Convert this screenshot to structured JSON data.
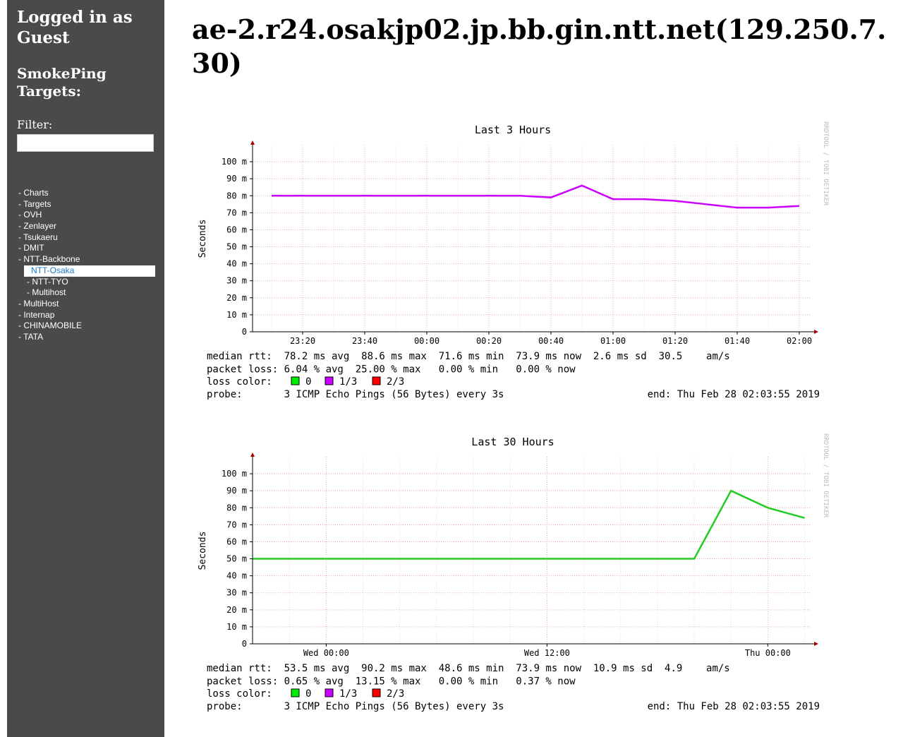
{
  "sidebar": {
    "login": "Logged in as Guest",
    "targets_heading": "SmokePing Targets:",
    "filter_label": "Filter:",
    "menu": [
      {
        "label": "- Charts"
      },
      {
        "label": "- Targets"
      },
      {
        "label": "- OVH"
      },
      {
        "label": "- Zenlayer"
      },
      {
        "label": "- Tsukaeru"
      },
      {
        "label": "- DMIT"
      },
      {
        "label": "- NTT-Backbone",
        "children": [
          {
            "label": "NTT-Osaka",
            "active": true
          },
          {
            "label": "- NTT-TYO"
          },
          {
            "label": "- Multihost"
          }
        ]
      },
      {
        "label": "- MultiHost"
      },
      {
        "label": "- Internap"
      },
      {
        "label": "- CHINAMOBILE"
      },
      {
        "label": "- TATA"
      }
    ]
  },
  "header": {
    "title": "ae-2.r24.osakjp02.jp.bb.gin.ntt.net(129.250.7.30)"
  },
  "chart_data": [
    {
      "type": "line",
      "title": "Last 3 Hours",
      "y_label": "Seconds",
      "watermark": "RRDTOOL / TOBI OETIKER",
      "categories": [
        null,
        "23:20",
        null,
        "23:40",
        null,
        "00:00",
        null,
        "00:20",
        null,
        "00:40",
        null,
        "01:00",
        null,
        "01:20",
        null,
        "01:40",
        null,
        "02:00"
      ],
      "values": [
        80,
        80,
        80,
        80,
        80,
        80,
        80,
        80,
        80,
        79,
        86,
        78,
        78,
        77,
        75,
        73,
        73,
        74
      ],
      "color": "#cc00ff",
      "ylim": [
        0,
        110
      ],
      "yticks": [
        0,
        {
          "value": 10,
          "label": "10 m"
        },
        {
          "value": 20,
          "label": "20 m"
        },
        {
          "value": 30,
          "label": "30 m"
        },
        {
          "value": 40,
          "label": "40 m"
        },
        {
          "value": 50,
          "label": "50 m"
        },
        {
          "value": 60,
          "label": "60 m"
        },
        {
          "value": 70,
          "label": "70 m"
        },
        {
          "value": 80,
          "label": "80 m"
        },
        {
          "value": 90,
          "label": "90 m"
        },
        {
          "value": 100,
          "label": "100 m"
        }
      ],
      "grid": true,
      "stats": [
        "median rtt:  78.2 ms avg  88.6 ms max  71.6 ms min  73.9 ms now  2.6 ms sd  30.5    am/s",
        "packet loss: 6.04 % avg  25.00 % max   0.00 % min   0.00 % now"
      ],
      "loss_color": {
        "label": "loss color:",
        "entries": [
          {
            "label": "0",
            "color": "#00ee00"
          },
          {
            "label": "1/3",
            "color": "#cc00ff"
          },
          {
            "label": "2/3",
            "color": "#ff0000"
          }
        ]
      },
      "probe": "probe:       3 ICMP Echo Pings (56 Bytes) every 3s",
      "end": "end: Thu Feb 28 02:03:55 2019"
    },
    {
      "type": "line",
      "title": "Last 30 Hours",
      "y_label": "Seconds",
      "watermark": "RRDTOOL / TOBI OETIKER",
      "categories": [
        null,
        null,
        "Wed 00:00",
        null,
        null,
        null,
        null,
        null,
        "Wed 12:00",
        null,
        null,
        null,
        null,
        null,
        "Thu 00:00",
        null
      ],
      "values": [
        50,
        50,
        50,
        50,
        50,
        50,
        50,
        50,
        50,
        50,
        50,
        50,
        50,
        90,
        80,
        74
      ],
      "color": "#22cc22",
      "ylim": [
        0,
        110
      ],
      "yticks": [
        0,
        {
          "value": 10,
          "label": "10 m"
        },
        {
          "value": 20,
          "label": "20 m"
        },
        {
          "value": 30,
          "label": "30 m"
        },
        {
          "value": 40,
          "label": "40 m"
        },
        {
          "value": 50,
          "label": "50 m"
        },
        {
          "value": 60,
          "label": "60 m"
        },
        {
          "value": 70,
          "label": "70 m"
        },
        {
          "value": 80,
          "label": "80 m"
        },
        {
          "value": 90,
          "label": "90 m"
        },
        {
          "value": 100,
          "label": "100 m"
        }
      ],
      "grid": true,
      "stats": [
        "median rtt:  53.5 ms avg  90.2 ms max  48.6 ms min  73.9 ms now  10.9 ms sd  4.9    am/s",
        "packet loss: 0.65 % avg  13.15 % max   0.00 % min   0.37 % now"
      ],
      "loss_color": {
        "label": "loss color:",
        "entries": [
          {
            "label": "0",
            "color": "#00ee00"
          },
          {
            "label": "1/3",
            "color": "#cc00ff"
          },
          {
            "label": "2/3",
            "color": "#ff0000"
          }
        ]
      },
      "probe": "probe:       3 ICMP Echo Pings (56 Bytes) every 3s",
      "end": "end: Thu Feb 28 02:03:55 2019"
    }
  ]
}
